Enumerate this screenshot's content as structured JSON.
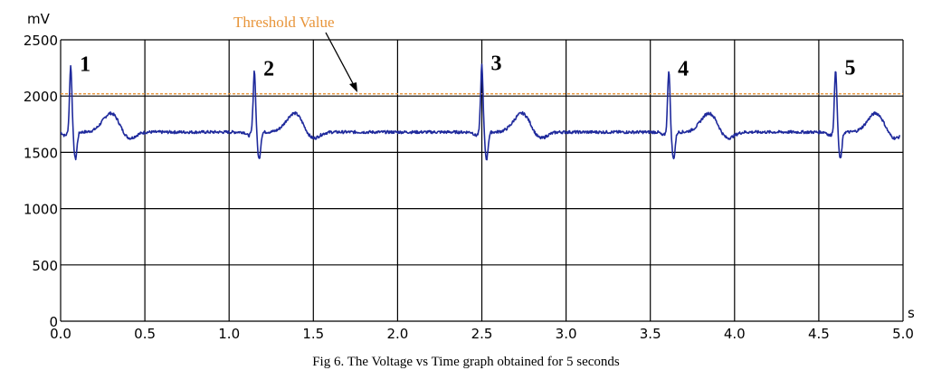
{
  "chart_data": {
    "type": "line",
    "title": "",
    "xlabel": "s",
    "ylabel": "mV",
    "xlim": [
      0,
      5
    ],
    "ylim": [
      0,
      2500
    ],
    "grid": true,
    "x_ticks": [
      "0.0",
      "0.5",
      "1.0",
      "1.5",
      "2.0",
      "2.5",
      "3.0",
      "3.5",
      "4.0",
      "4.5",
      "5.0"
    ],
    "y_ticks": [
      "0",
      "500",
      "1000",
      "1500",
      "2000",
      "2500"
    ],
    "threshold": {
      "value": 2020,
      "label": "Threshold Value",
      "color": "#e8953a"
    },
    "peak_labels": [
      {
        "x": 0.06,
        "y": 2270,
        "label": "1"
      },
      {
        "x": 1.15,
        "y": 2230,
        "label": "2"
      },
      {
        "x": 2.5,
        "y": 2280,
        "label": "3"
      },
      {
        "x": 3.61,
        "y": 2230,
        "label": "4"
      },
      {
        "x": 4.6,
        "y": 2240,
        "label": "5"
      }
    ],
    "series": [
      {
        "color": "#1f2a9c",
        "beats": [
          0.06,
          1.15,
          2.5,
          3.61,
          4.6
        ],
        "r_peaks": [
          2270,
          2230,
          2280,
          2230,
          2240
        ],
        "baseline": 1680,
        "range": [
          0.0,
          4.98
        ]
      }
    ]
  },
  "caption": "Fig 6. The Voltage vs Time graph obtained for 5 seconds"
}
